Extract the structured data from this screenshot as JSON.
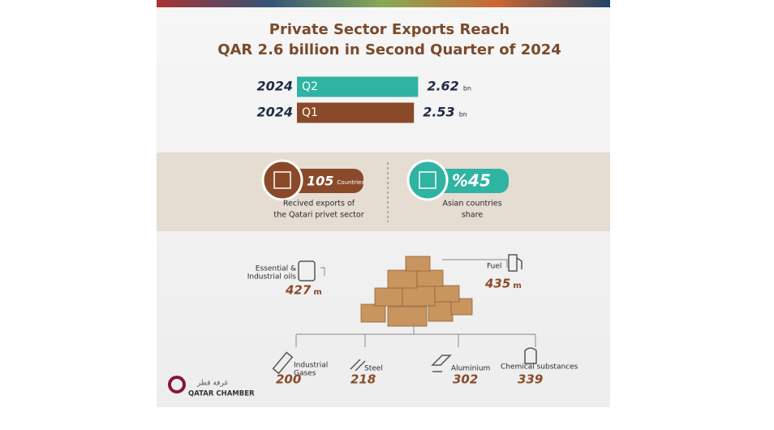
{
  "title": {
    "line1": "Private Sector Exports Reach",
    "line2": "QAR 2.6 billion in Second Quarter of 2024"
  },
  "quarters": [
    {
      "year": "2024",
      "quarter": "Q2",
      "value": 2.62,
      "unit": "bn",
      "color": "#2fb3a2"
    },
    {
      "year": "2024",
      "quarter": "Q1",
      "value": 2.53,
      "unit": "bn",
      "color": "#8a4a2a"
    }
  ],
  "stats": [
    {
      "value": "105",
      "unit": "Countries",
      "caption": [
        "Recived exports of",
        "the Qatari privet sector"
      ],
      "color": "#8a4a2a"
    },
    {
      "value": "%45",
      "caption": [
        "Asian countries",
        "share"
      ],
      "color": "#2fb3a2"
    }
  ],
  "products": [
    {
      "label": [
        "Essential &",
        "Industrial oils"
      ],
      "value": 427,
      "unit": "m"
    },
    {
      "label": [
        "Fuel"
      ],
      "value": 435,
      "unit": "m"
    },
    {
      "label": [
        "Industrial",
        "Gases"
      ],
      "value": 200
    },
    {
      "label": [
        "Steel"
      ],
      "value": 218
    },
    {
      "label": [
        "Aluminium"
      ],
      "value": 302
    },
    {
      "label": [
        "Chemical substances"
      ],
      "value": 339
    }
  ],
  "logo": {
    "arabic": "غرفة قطر",
    "name": "QATAR CHAMBER"
  }
}
